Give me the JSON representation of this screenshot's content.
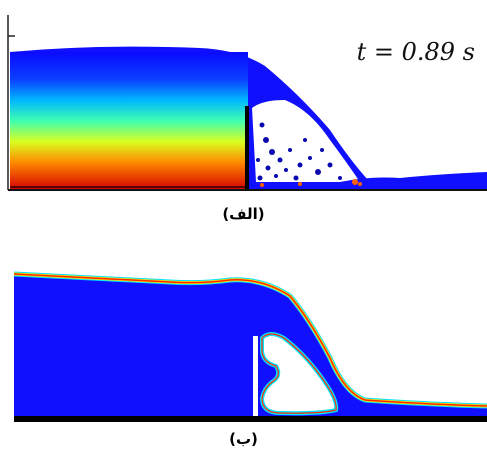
{
  "panel_a": {
    "time_label": "t = 0.89 s",
    "caption": "(الف)"
  },
  "panel_b": {
    "caption": "(ب)"
  },
  "colors": {
    "fluid_blue": "#1010ff",
    "interface_cyan": "#00e5ff",
    "interface_yellow": "#ffe000",
    "interface_red": "#ff2a00",
    "deep_red": "#d21010",
    "floor": "#000000"
  }
}
